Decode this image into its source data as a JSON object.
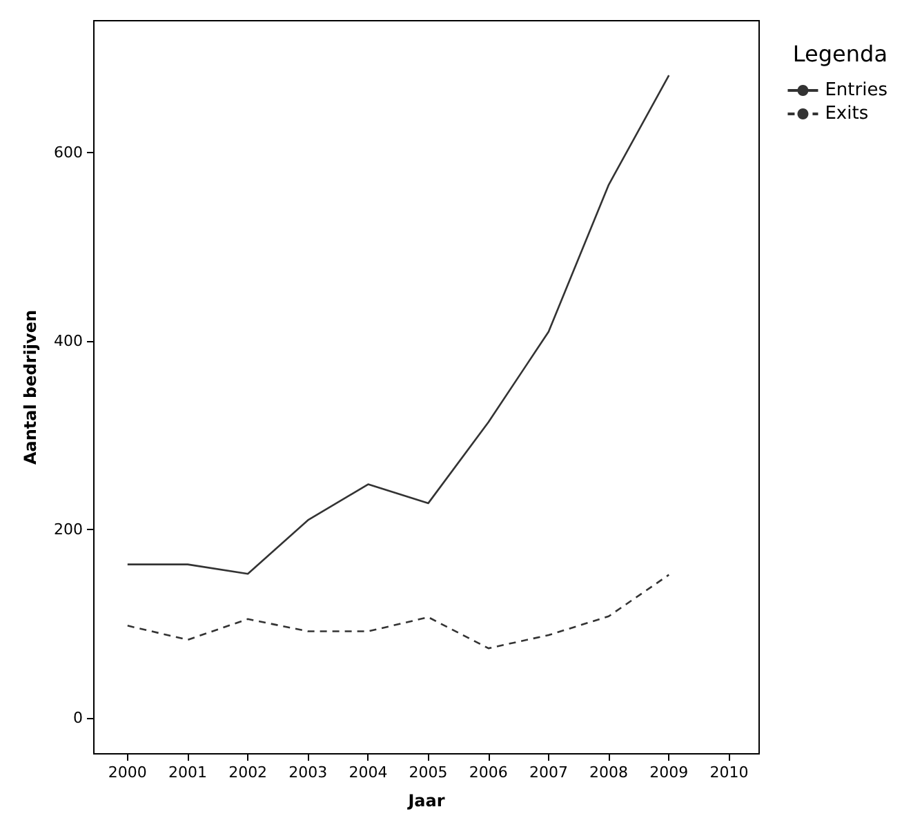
{
  "chart_data": {
    "type": "line",
    "xlabel": "Jaar",
    "ylabel": "Aantal bedrijven",
    "legend_title": "Legenda",
    "legend": "top right",
    "grid": false,
    "marker": "none",
    "x": [
      2000,
      2001,
      2002,
      2003,
      2004,
      2005,
      2006,
      2007,
      2008,
      2009
    ],
    "series": [
      {
        "name": "Entries",
        "color": "#333333",
        "line_style": "solid",
        "values": [
          163,
          163,
          153,
          210,
          248,
          228,
          314,
          410,
          566,
          682
        ]
      },
      {
        "name": "Exits",
        "color": "#333333",
        "line_style": "dashed",
        "values": [
          98,
          83,
          105,
          92,
          92,
          107,
          74,
          88,
          108,
          152
        ]
      }
    ],
    "xlim": [
      1999.44,
      2010.5
    ],
    "xticks": [
      2000,
      2001,
      2002,
      2003,
      2004,
      2005,
      2006,
      2007,
      2008,
      2009,
      2010
    ],
    "ylim": [
      -38,
      740
    ],
    "yticks": [
      0,
      200,
      400,
      600
    ]
  }
}
